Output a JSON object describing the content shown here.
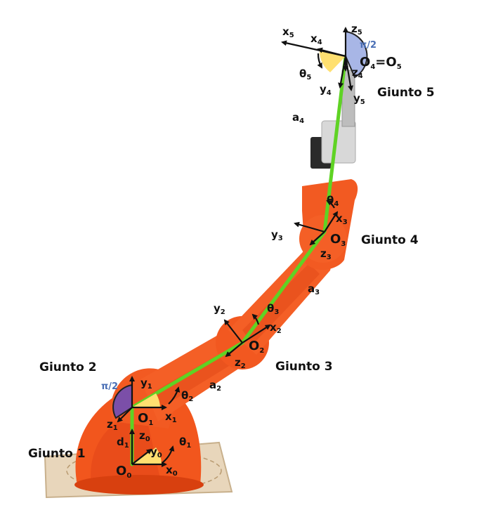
{
  "joints": {
    "j1": "Giunto 1",
    "j2": "Giunto 2",
    "j3": "Giunto 3",
    "j4": "Giunto 4",
    "j5": "Giunto 5"
  },
  "origins": {
    "o0": "O",
    "o0_sub": "0",
    "o1": "O",
    "o1_sub": "1",
    "o2": "O",
    "o2_sub": "2",
    "o3": "O",
    "o3_sub": "3",
    "o45_a": "O",
    "o45_a_sub": "4",
    "o45_eq": "=",
    "o45_b": "O",
    "o45_b_sub": "5"
  },
  "axes": {
    "x0": "x",
    "x0s": "0",
    "y0": "y",
    "y0s": "0",
    "z0": "z",
    "z0s": "0",
    "x1": "x",
    "x1s": "1",
    "y1": "y",
    "y1s": "1",
    "z1": "z",
    "z1s": "1",
    "x2": "x",
    "x2s": "2",
    "y2": "y",
    "y2s": "2",
    "z2": "z",
    "z2s": "2",
    "x3": "x",
    "x3s": "3",
    "y3": "y",
    "y3s": "3",
    "z3": "z",
    "z3s": "3",
    "x4": "x",
    "x4s": "4",
    "y4": "y",
    "y4s": "4",
    "z4": "z",
    "z4s": "4",
    "x5": "x",
    "x5s": "5",
    "y5": "y",
    "y5s": "5",
    "z5": "z",
    "z5s": "5"
  },
  "params": {
    "theta1": "θ",
    "theta1s": "1",
    "theta2": "θ",
    "theta2s": "2",
    "theta3": "θ",
    "theta3s": "3",
    "theta4": "θ",
    "theta4s": "4",
    "theta5": "θ",
    "theta5s": "5",
    "d1": "d",
    "d1s": "1",
    "a2": "a",
    "a2s": "2",
    "a3": "a",
    "a3s": "3",
    "a4": "a",
    "a4s": "4",
    "pi_half_2": "π/2",
    "pi_half_5": "π/2"
  },
  "colors": {
    "robot_orange": "#f2561d",
    "robot_dark": "#d8400f",
    "link_green": "#5fd324",
    "angle_yellow": "#ffe070",
    "angle_purple": "#7b4fa8",
    "angle_blue": "#9fb0e0",
    "base_board": "#e9d7bd"
  }
}
